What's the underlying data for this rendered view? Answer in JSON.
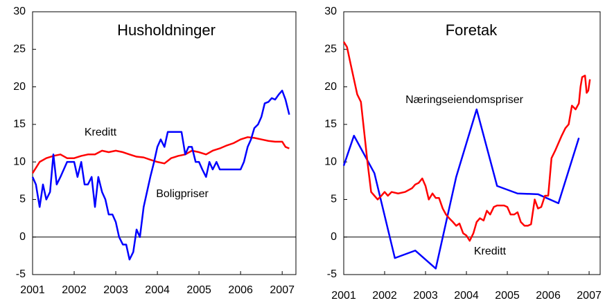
{
  "chart_data": [
    {
      "type": "line",
      "title": "Husholdninger",
      "xlim": [
        2001,
        2007.33
      ],
      "ylim": [
        -5,
        30
      ],
      "xticks": [
        2001,
        2002,
        2003,
        2004,
        2005,
        2006,
        2007
      ],
      "yticks": [
        -5,
        0,
        5,
        10,
        15,
        20,
        25,
        30
      ],
      "series": [
        {
          "name": "Kreditt",
          "color": "#ff0000",
          "x": [
            2001.0,
            2001.17,
            2001.33,
            2001.5,
            2001.67,
            2001.83,
            2002.0,
            2002.17,
            2002.33,
            2002.5,
            2002.67,
            2002.83,
            2003.0,
            2003.17,
            2003.33,
            2003.5,
            2003.67,
            2003.83,
            2004.0,
            2004.17,
            2004.33,
            2004.5,
            2004.67,
            2004.83,
            2005.0,
            2005.17,
            2005.33,
            2005.5,
            2005.67,
            2005.83,
            2006.0,
            2006.17,
            2006.33,
            2006.5,
            2006.67,
            2006.83,
            2007.0,
            2007.08,
            2007.17
          ],
          "values": [
            8.5,
            10,
            10.5,
            10.8,
            11,
            10.5,
            10.5,
            10.8,
            11,
            11,
            11.5,
            11.3,
            11.5,
            11.3,
            11,
            10.7,
            10.6,
            10.3,
            10,
            9.8,
            10.5,
            10.8,
            11,
            11.5,
            11.3,
            11,
            11.5,
            11.8,
            12.2,
            12.5,
            13,
            13.3,
            13.2,
            13,
            12.8,
            12.7,
            12.7,
            12,
            11.8
          ]
        },
        {
          "name": "Boligpriser",
          "color": "#0000ff",
          "x": [
            2001.0,
            2001.08,
            2001.17,
            2001.25,
            2001.33,
            2001.42,
            2001.5,
            2001.58,
            2001.67,
            2001.75,
            2001.83,
            2002.0,
            2002.08,
            2002.17,
            2002.25,
            2002.33,
            2002.42,
            2002.5,
            2002.58,
            2002.67,
            2002.75,
            2002.83,
            2002.92,
            2003.0,
            2003.08,
            2003.17,
            2003.25,
            2003.33,
            2003.42,
            2003.5,
            2003.58,
            2003.67,
            2003.75,
            2003.83,
            2003.92,
            2004.0,
            2004.08,
            2004.17,
            2004.25,
            2004.33,
            2004.5,
            2004.58,
            2004.67,
            2004.75,
            2004.83,
            2004.92,
            2005.0,
            2005.08,
            2005.17,
            2005.25,
            2005.33,
            2005.42,
            2005.5,
            2005.67,
            2005.83,
            2006.0,
            2006.08,
            2006.17,
            2006.25,
            2006.33,
            2006.42,
            2006.5,
            2006.58,
            2006.67,
            2006.75,
            2006.83,
            2006.92,
            2007.0,
            2007.08,
            2007.17
          ],
          "values": [
            8,
            7,
            4,
            7,
            5,
            6,
            11,
            7,
            8,
            9,
            10,
            10,
            8,
            10,
            7,
            7,
            8,
            4,
            8,
            6,
            5,
            3,
            3,
            2,
            0,
            -1,
            -1,
            -3,
            -2,
            1,
            0,
            4,
            6,
            8,
            10,
            12,
            13,
            12,
            14,
            14,
            14,
            14,
            11,
            12,
            12,
            10,
            10,
            9,
            8,
            10,
            9,
            10,
            9,
            9,
            9,
            9,
            10,
            12,
            13,
            14.5,
            15,
            16,
            17.8,
            18,
            18.5,
            18.3,
            19,
            19.5,
            18.3,
            16.3
          ]
        }
      ]
    },
    {
      "type": "line",
      "title": "Foretak",
      "xlim": [
        2001,
        2007.27
      ],
      "ylim": [
        -5,
        30
      ],
      "xticks": [
        2001,
        2002,
        2003,
        2004,
        2005,
        2006,
        2007
      ],
      "yticks": [
        -5,
        0,
        5,
        10,
        15,
        20,
        25,
        30
      ],
      "series": [
        {
          "name": "Næringseiendomspriser",
          "color": "#0000ff",
          "x": [
            2001.0,
            2001.25,
            2001.75,
            2002.25,
            2002.75,
            2003.25,
            2003.75,
            2004.25,
            2004.75,
            2005.25,
            2005.75,
            2006.25,
            2006.75
          ],
          "values": [
            9.5,
            13.5,
            8.5,
            -2.8,
            -1.8,
            -4.2,
            8,
            17,
            6.8,
            5.8,
            5.7,
            4.5,
            13.2
          ]
        },
        {
          "name": "Kreditt",
          "color": "#ff0000",
          "x": [
            2001.0,
            2001.08,
            2001.17,
            2001.25,
            2001.33,
            2001.42,
            2001.5,
            2001.58,
            2001.67,
            2001.75,
            2001.83,
            2001.92,
            2002.0,
            2002.08,
            2002.17,
            2002.33,
            2002.5,
            2002.67,
            2002.75,
            2002.83,
            2002.92,
            2003.0,
            2003.08,
            2003.17,
            2003.25,
            2003.33,
            2003.42,
            2003.5,
            2003.58,
            2003.67,
            2003.75,
            2003.83,
            2003.92,
            2004.0,
            2004.08,
            2004.17,
            2004.25,
            2004.33,
            2004.42,
            2004.5,
            2004.58,
            2004.67,
            2004.75,
            2004.92,
            2005.0,
            2005.08,
            2005.17,
            2005.25,
            2005.33,
            2005.42,
            2005.5,
            2005.58,
            2005.67,
            2005.75,
            2005.83,
            2005.92,
            2006.0,
            2006.08,
            2006.17,
            2006.25,
            2006.33,
            2006.42,
            2006.5,
            2006.58,
            2006.67,
            2006.75,
            2006.79,
            2006.83,
            2006.9,
            2006.94,
            2006.98,
            2007.02
          ],
          "values": [
            26,
            25.3,
            23,
            21,
            19,
            18,
            14,
            10,
            6,
            5.5,
            5,
            5.5,
            6,
            5.5,
            6,
            5.8,
            6,
            6.5,
            7,
            7.2,
            7.8,
            6.8,
            5,
            5.8,
            5.2,
            5.2,
            3.8,
            3,
            2.5,
            2,
            1.5,
            1.8,
            0.5,
            0.2,
            -0.5,
            0.5,
            2,
            2.5,
            2.2,
            3.5,
            3,
            4,
            4.2,
            4.2,
            4,
            3,
            3,
            3.3,
            2,
            1.5,
            1.5,
            1.7,
            5,
            3.8,
            4,
            5.5,
            5.5,
            10.5,
            11.5,
            12.5,
            13.5,
            14.5,
            15,
            17.5,
            17,
            17.8,
            20,
            21.3,
            21.5,
            19.2,
            19.5,
            21
          ]
        }
      ]
    }
  ]
}
